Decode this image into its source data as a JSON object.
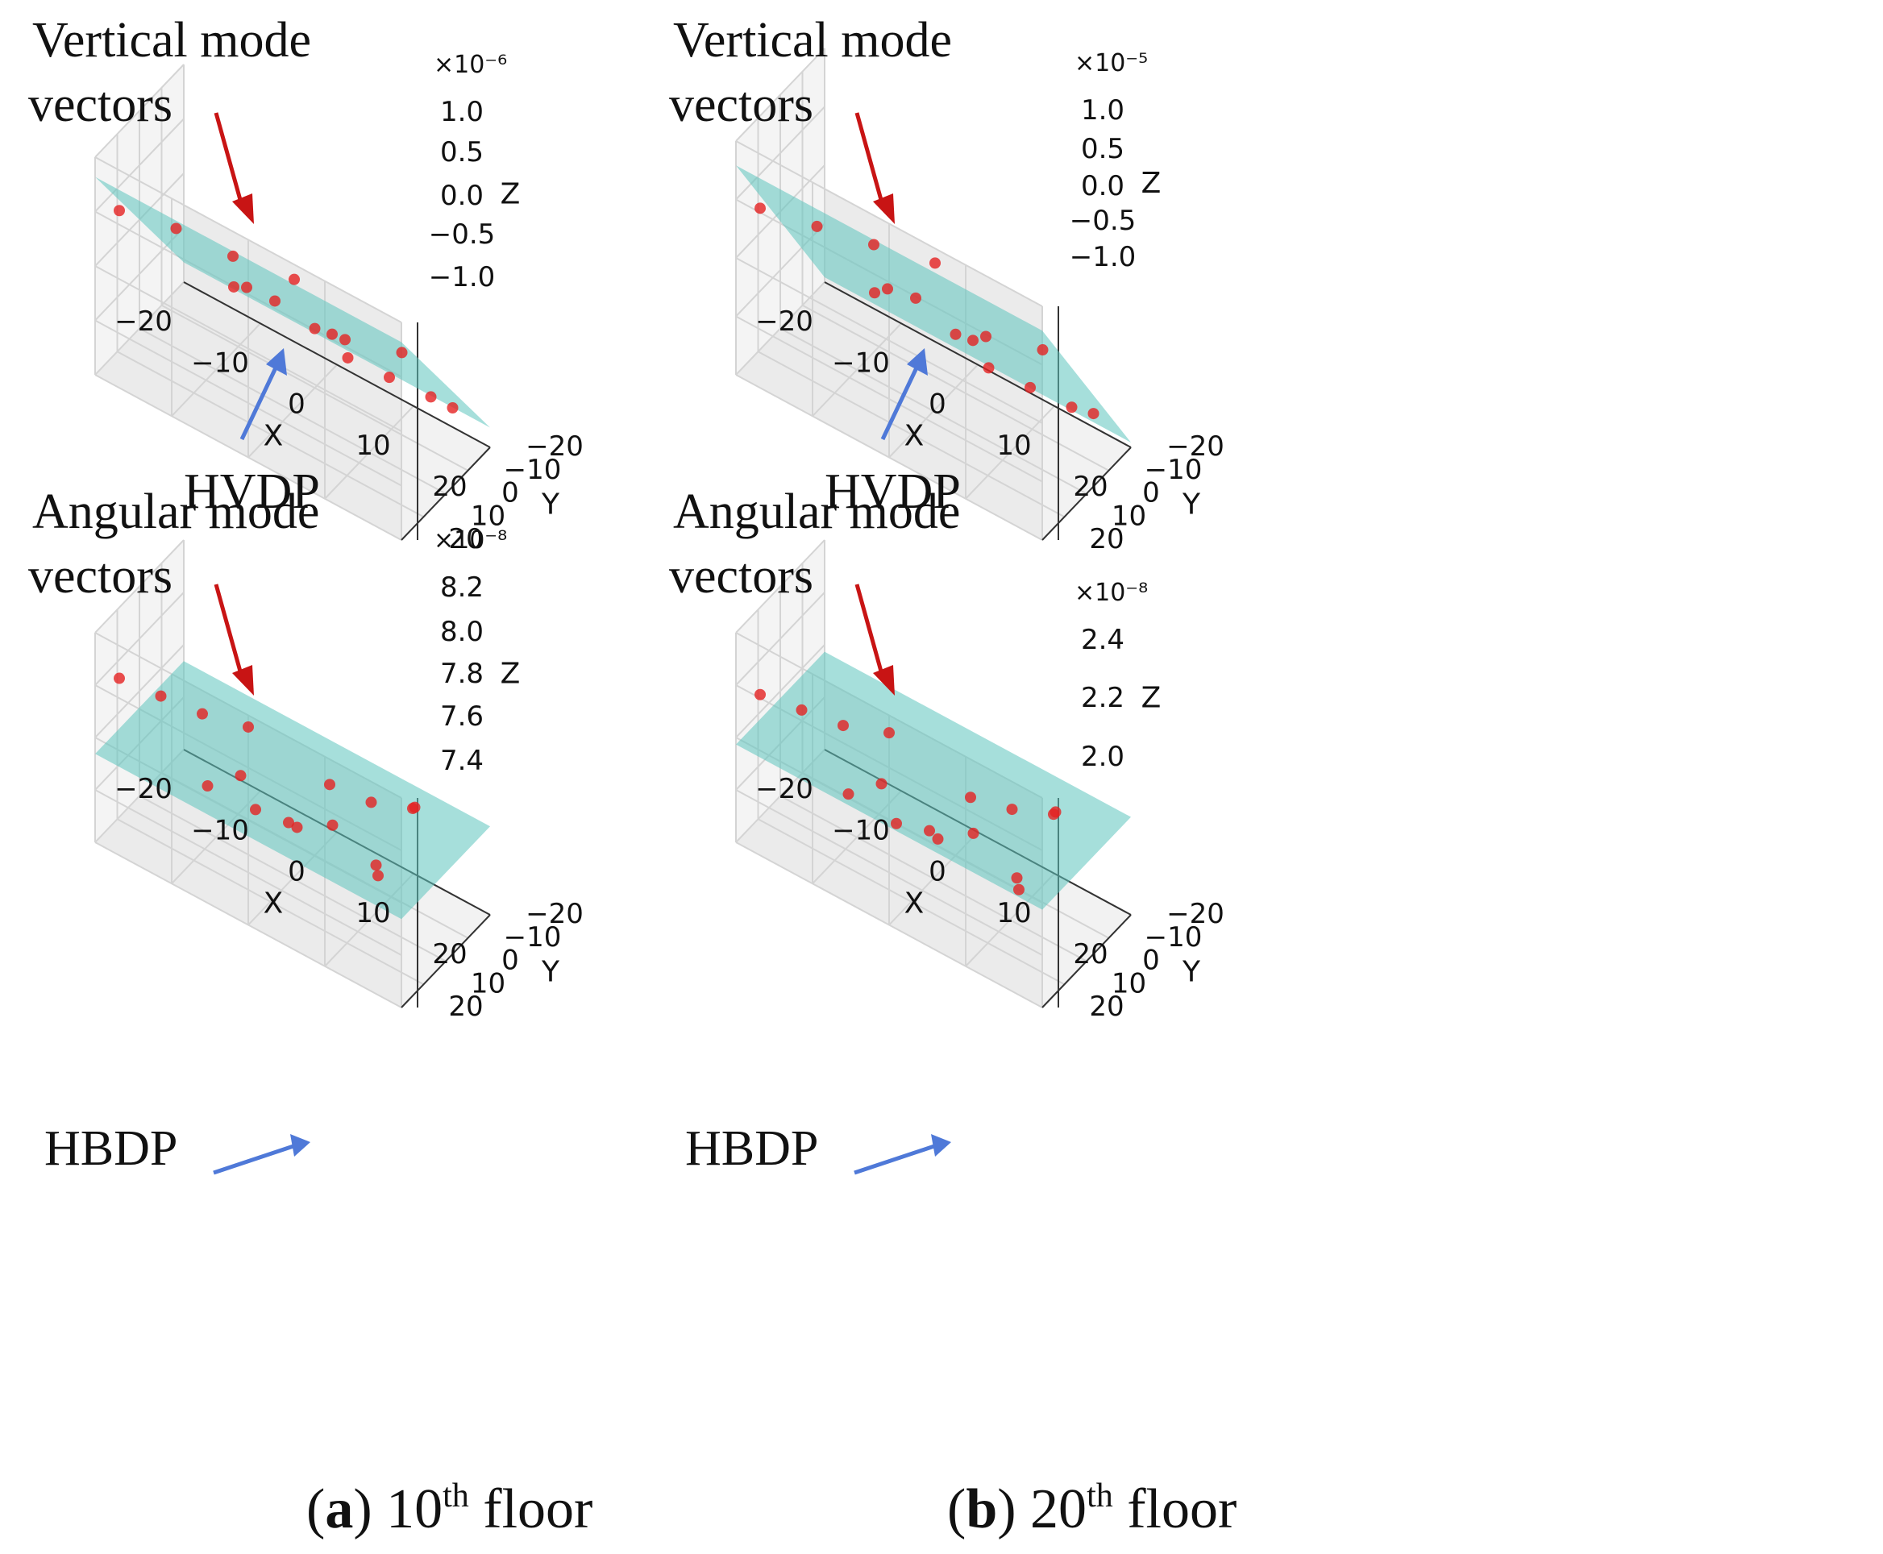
{
  "figure": {
    "captions": [
      {
        "letter": "a",
        "lead": "(",
        "close": ")",
        "number": "10",
        "sup": "th",
        "word": "floor"
      },
      {
        "letter": "b",
        "lead": "(",
        "close": ")",
        "number": "20",
        "sup": "th",
        "word": "floor"
      }
    ]
  },
  "colors": {
    "plane": "#5cc4bd",
    "points": "#e52222",
    "vertical_arrow": "#c81414",
    "plane_arrow": "#4f79d8",
    "pane": "#f2f2f2",
    "grid": "#d4d4d4"
  },
  "chart_data": [
    {
      "type": "scatter",
      "panel": "top-left",
      "plane_label": "HVDP",
      "annotation_line1": "Vertical mode",
      "annotation_line2": "vectors",
      "xlabel": "X",
      "ylabel": "Y",
      "zlabel": "Z",
      "x_ticks": [
        "−20",
        "−10",
        "0",
        "10",
        "20"
      ],
      "y_ticks": [
        "−20",
        "−10",
        "0",
        "10",
        "20"
      ],
      "z_ticks": [
        "−1.0",
        "−0.5",
        "0.0",
        "0.5",
        "1.0"
      ],
      "z_exponent": "×10⁻⁶",
      "xlim": [
        -20,
        20
      ],
      "ylim": [
        -20,
        20
      ],
      "zlim": [
        -1.1,
        1.1
      ],
      "plane": {
        "z_at_xmin_ymax": 0.9,
        "z_at_xmax_ymax": 0.9,
        "z_at_xmax_ymin": -0.9,
        "z_at_xmin_ymin": -0.9
      },
      "points": [
        {
          "x": -18,
          "y": 16,
          "z": 0.55
        },
        {
          "x": -10,
          "y": 18,
          "z": 0.75
        },
        {
          "x": -2,
          "y": 20,
          "z": 0.85
        },
        {
          "x": 6,
          "y": 20,
          "z": 0.95
        },
        {
          "x": 0,
          "y": 8,
          "z": 0.2
        },
        {
          "x": 8,
          "y": 4,
          "z": 0.05
        },
        {
          "x": 16,
          "y": 6,
          "z": 0.3
        },
        {
          "x": -6,
          "y": 0,
          "z": -0.1
        },
        {
          "x": 4,
          "y": -4,
          "z": -0.25
        },
        {
          "x": -10,
          "y": -8,
          "z": -0.45
        },
        {
          "x": 0,
          "y": -10,
          "z": -0.5
        },
        {
          "x": 18,
          "y": -10,
          "z": -0.55
        },
        {
          "x": 14,
          "y": -14,
          "z": -0.7
        },
        {
          "x": 8,
          "y": -16,
          "z": -0.8
        },
        {
          "x": 2,
          "y": -18,
          "z": -0.9
        }
      ]
    },
    {
      "type": "scatter",
      "panel": "top-right",
      "plane_label": "HVDP",
      "annotation_line1": "Vertical mode",
      "annotation_line2": "vectors",
      "xlabel": "X",
      "ylabel": "Y",
      "zlabel": "Z",
      "x_ticks": [
        "−20",
        "−10",
        "0",
        "10",
        "20"
      ],
      "y_ticks": [
        "−20",
        "−10",
        "0",
        "10",
        "20"
      ],
      "z_ticks": [
        "−1.0",
        "−0.5",
        "0.0",
        "0.5",
        "1.0"
      ],
      "z_exponent": "×10⁻⁵",
      "xlim": [
        -20,
        20
      ],
      "ylim": [
        -20,
        20
      ],
      "zlim": [
        -1.1,
        1.3
      ],
      "plane": {
        "z_at_xmin_ymax": 1.05,
        "z_at_xmax_ymax": 1.05,
        "z_at_xmax_ymin": -1.05,
        "z_at_xmin_ymin": -1.05
      },
      "points": [
        {
          "x": -18,
          "y": 16,
          "z": 0.6
        },
        {
          "x": -10,
          "y": 18,
          "z": 0.8
        },
        {
          "x": -2,
          "y": 20,
          "z": 1.0
        },
        {
          "x": 6,
          "y": 20,
          "z": 1.15
        },
        {
          "x": 0,
          "y": 8,
          "z": 0.25
        },
        {
          "x": 8,
          "y": 4,
          "z": 0.1
        },
        {
          "x": 16,
          "y": 6,
          "z": 0.35
        },
        {
          "x": -6,
          "y": 0,
          "z": -0.1
        },
        {
          "x": 4,
          "y": -4,
          "z": -0.3
        },
        {
          "x": -10,
          "y": -8,
          "z": -0.5
        },
        {
          "x": 0,
          "y": -10,
          "z": -0.55
        },
        {
          "x": 18,
          "y": -10,
          "z": -0.6
        },
        {
          "x": 14,
          "y": -14,
          "z": -0.8
        },
        {
          "x": 8,
          "y": -16,
          "z": -0.9
        },
        {
          "x": 2,
          "y": -18,
          "z": -1.0
        }
      ]
    },
    {
      "type": "scatter",
      "panel": "bottom-left",
      "plane_label": "HBDP",
      "annotation_line1": "Angular mode",
      "annotation_line2": "vectors",
      "xlabel": "X",
      "ylabel": "Y",
      "zlabel": "Z",
      "x_ticks": [
        "−20",
        "−10",
        "0",
        "10",
        "20"
      ],
      "y_ticks": [
        "−20",
        "−10",
        "0",
        "10",
        "20"
      ],
      "z_ticks": [
        "7.4",
        "7.6",
        "7.8",
        "8.0",
        "8.2"
      ],
      "z_exponent": "×10⁻⁸",
      "xlim": [
        -20,
        20
      ],
      "ylim": [
        -20,
        20
      ],
      "zlim": [
        7.4,
        8.3
      ],
      "plane": {
        "z_at_xmin_ymax": 7.78,
        "z_at_xmax_ymax": 7.78,
        "z_at_xmax_ymin": 7.78,
        "z_at_xmin_ymin": 7.78
      },
      "points": [
        {
          "x": -18,
          "y": 16,
          "z": 8.1
        },
        {
          "x": -12,
          "y": 18,
          "z": 8.15
        },
        {
          "x": -6,
          "y": 20,
          "z": 8.2
        },
        {
          "x": 0,
          "y": 20,
          "z": 8.25
        },
        {
          "x": 20,
          "y": 14,
          "z": 8.2
        },
        {
          "x": 18,
          "y": 8,
          "z": 8.1
        },
        {
          "x": 12,
          "y": 6,
          "z": 8.0
        },
        {
          "x": 6,
          "y": 4,
          "z": 7.95
        },
        {
          "x": 0,
          "y": -2,
          "z": 7.6
        },
        {
          "x": -6,
          "y": -4,
          "z": 7.55
        },
        {
          "x": 10,
          "y": -4,
          "z": 7.55
        },
        {
          "x": 8,
          "y": -10,
          "z": 7.5
        },
        {
          "x": -14,
          "y": -10,
          "z": 7.45
        },
        {
          "x": -4,
          "y": -12,
          "z": 7.45
        },
        {
          "x": -12,
          "y": -18,
          "z": 7.45
        },
        {
          "x": 0,
          "y": -18,
          "z": 7.45
        }
      ]
    },
    {
      "type": "scatter",
      "panel": "bottom-right",
      "plane_label": "HBDP",
      "annotation_line1": "Angular mode",
      "annotation_line2": "vectors",
      "xlabel": "X",
      "ylabel": "Y",
      "zlabel": "Z",
      "x_ticks": [
        "−20",
        "−10",
        "0",
        "10",
        "20"
      ],
      "y_ticks": [
        "−20",
        "−10",
        "0",
        "10",
        "20"
      ],
      "z_ticks": [
        "2.0",
        "2.2",
        "2.4"
      ],
      "z_exponent": "×10⁻⁸",
      "xlim": [
        -20,
        20
      ],
      "ylim": [
        -20,
        20
      ],
      "zlim": [
        2.0,
        2.6
      ],
      "plane": {
        "z_at_xmin_ymax": 2.28,
        "z_at_xmax_ymax": 2.28,
        "z_at_xmax_ymin": 2.28,
        "z_at_xmin_ymin": 2.28
      },
      "points": [
        {
          "x": -18,
          "y": 16,
          "z": 2.42
        },
        {
          "x": -12,
          "y": 18,
          "z": 2.46
        },
        {
          "x": -6,
          "y": 20,
          "z": 2.5
        },
        {
          "x": 0,
          "y": 20,
          "z": 2.55
        },
        {
          "x": 20,
          "y": 14,
          "z": 2.52
        },
        {
          "x": 18,
          "y": 8,
          "z": 2.45
        },
        {
          "x": 12,
          "y": 6,
          "z": 2.38
        },
        {
          "x": 6,
          "y": 4,
          "z": 2.33
        },
        {
          "x": 0,
          "y": -2,
          "z": 2.1
        },
        {
          "x": -6,
          "y": -4,
          "z": 2.06
        },
        {
          "x": 10,
          "y": -4,
          "z": 2.06
        },
        {
          "x": 8,
          "y": -10,
          "z": 2.03
        },
        {
          "x": -14,
          "y": -10,
          "z": 2.01
        },
        {
          "x": -4,
          "y": -12,
          "z": 2.01
        },
        {
          "x": -12,
          "y": -18,
          "z": 2.01
        },
        {
          "x": 0,
          "y": -18,
          "z": 2.01
        }
      ]
    }
  ]
}
